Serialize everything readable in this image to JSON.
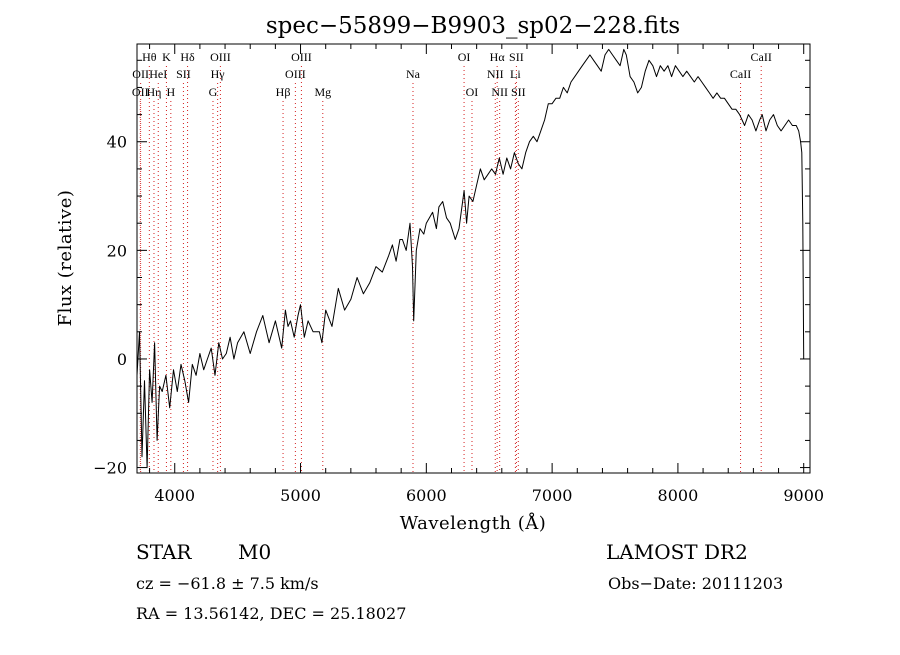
{
  "chart_data": {
    "type": "line",
    "title": "spec−55899−B9903_sp02−228.fits",
    "xlabel": "Wavelength (Å)",
    "ylabel": "Flux (relative)",
    "xlim": [
      3700,
      9050
    ],
    "ylim": [
      -21,
      58
    ],
    "xticks": [
      4000,
      5000,
      6000,
      7000,
      8000,
      9000
    ],
    "yticks": [
      -20,
      0,
      20,
      40
    ],
    "x_minor_step": 200,
    "y_minor_step": 5,
    "series": [
      {
        "color": "#000000",
        "x": [
          3700,
          3720,
          3740,
          3760,
          3780,
          3800,
          3820,
          3840,
          3860,
          3880,
          3900,
          3930,
          3960,
          3990,
          4020,
          4050,
          4080,
          4110,
          4140,
          4170,
          4200,
          4230,
          4260,
          4290,
          4320,
          4350,
          4380,
          4410,
          4440,
          4470,
          4500,
          4550,
          4600,
          4650,
          4700,
          4750,
          4800,
          4850,
          4880,
          4900,
          4920,
          4950,
          4980,
          5000,
          5030,
          5060,
          5100,
          5150,
          5170,
          5200,
          5250,
          5300,
          5350,
          5400,
          5450,
          5500,
          5550,
          5600,
          5650,
          5700,
          5730,
          5760,
          5790,
          5810,
          5840,
          5870,
          5890,
          5900,
          5920,
          5950,
          5980,
          6000,
          6050,
          6080,
          6100,
          6130,
          6160,
          6190,
          6230,
          6260,
          6300,
          6320,
          6340,
          6370,
          6400,
          6430,
          6460,
          6490,
          6520,
          6550,
          6580,
          6610,
          6640,
          6670,
          6700,
          6730,
          6760,
          6790,
          6820,
          6850,
          6880,
          6910,
          6940,
          6970,
          7000,
          7030,
          7060,
          7090,
          7120,
          7150,
          7180,
          7210,
          7240,
          7270,
          7300,
          7330,
          7360,
          7390,
          7420,
          7450,
          7480,
          7510,
          7540,
          7570,
          7590,
          7620,
          7650,
          7680,
          7710,
          7740,
          7770,
          7800,
          7830,
          7860,
          7890,
          7920,
          7950,
          7980,
          8010,
          8040,
          8070,
          8100,
          8130,
          8160,
          8190,
          8220,
          8250,
          8280,
          8310,
          8340,
          8370,
          8400,
          8430,
          8460,
          8490,
          8510,
          8530,
          8560,
          8590,
          8620,
          8650,
          8670,
          8700,
          8730,
          8760,
          8790,
          8820,
          8850,
          8880,
          8910,
          8940,
          8960,
          8975,
          8985,
          8993,
          9000
        ],
        "y": [
          -3,
          5,
          -18,
          -4,
          -20,
          -2,
          -8,
          3,
          -15,
          -5,
          -6,
          -3,
          -9,
          -2,
          -6,
          -1,
          -4,
          -8,
          -1,
          -3,
          1,
          -2,
          0,
          2,
          -3,
          3,
          0,
          1,
          4,
          0,
          3,
          5,
          1,
          5,
          8,
          3,
          7,
          2,
          9,
          6,
          7,
          4,
          8,
          10,
          4,
          7,
          5,
          5,
          3,
          9,
          6,
          13,
          9,
          11,
          15,
          12,
          14,
          17,
          16,
          19,
          21,
          18,
          22,
          22,
          20,
          25,
          17,
          7,
          20,
          24,
          23,
          25,
          27,
          24,
          28,
          29,
          26,
          25,
          22,
          24,
          31,
          25,
          30,
          29,
          32,
          35,
          33,
          34,
          35,
          34,
          37,
          34,
          37,
          35,
          38,
          36,
          35,
          38,
          40,
          41,
          40,
          42,
          44,
          47,
          47,
          48,
          48,
          50,
          49,
          51,
          52,
          53,
          54,
          55,
          56,
          55,
          54,
          53,
          56,
          57,
          56,
          55,
          54,
          57,
          56,
          52,
          51,
          49,
          50,
          53,
          55,
          54,
          52,
          54,
          53,
          54,
          52,
          54,
          53,
          52,
          53,
          52,
          51,
          52,
          51,
          50,
          49,
          48,
          49,
          48,
          48,
          47,
          46,
          46,
          45,
          44,
          43,
          45,
          44,
          42,
          44,
          45,
          42,
          44,
          45,
          43,
          42,
          43,
          44,
          43,
          43,
          42,
          40,
          38,
          25,
          0
        ]
      }
    ],
    "lines": [
      {
        "wave": 3726,
        "label": "OII",
        "row": 2
      },
      {
        "wave": 3729,
        "label": "OII",
        "row": 1
      },
      {
        "wave": 3798,
        "label": "Hθ",
        "row": 0
      },
      {
        "wave": 3835,
        "label": "Hη",
        "row": 2
      },
      {
        "wave": 3869,
        "label": "HeI",
        "row": 1
      },
      {
        "wave": 3934,
        "label": "K",
        "row": 0
      },
      {
        "wave": 3969,
        "label": "H",
        "row": 2
      },
      {
        "wave": 4069,
        "label": "SII",
        "row": 1
      },
      {
        "wave": 4102,
        "label": "Hδ",
        "row": 0
      },
      {
        "wave": 4304,
        "label": "G",
        "row": 2
      },
      {
        "wave": 4341,
        "label": "Hγ",
        "row": 1
      },
      {
        "wave": 4363,
        "label": "OIII",
        "row": 0
      },
      {
        "wave": 4861,
        "label": "Hβ",
        "row": 2
      },
      {
        "wave": 4959,
        "label": "OIII",
        "row": 1
      },
      {
        "wave": 5007,
        "label": "OIII",
        "row": 0
      },
      {
        "wave": 5177,
        "label": "Mg",
        "row": 2
      },
      {
        "wave": 5894,
        "label": "Na",
        "row": 1
      },
      {
        "wave": 6300,
        "label": "OI",
        "row": 0
      },
      {
        "wave": 6363,
        "label": "OI",
        "row": 2
      },
      {
        "wave": 6548,
        "label": "NII",
        "row": 1
      },
      {
        "wave": 6563,
        "label": "Hα",
        "row": 0
      },
      {
        "wave": 6583,
        "label": "NII",
        "row": 2
      },
      {
        "wave": 6708,
        "label": "Li",
        "row": 1
      },
      {
        "wave": 6716,
        "label": "SII",
        "row": 0
      },
      {
        "wave": 6731,
        "label": "SII",
        "row": 2
      },
      {
        "wave": 8498,
        "label": "CaII",
        "row": 1
      },
      {
        "wave": 8662,
        "label": "CaII",
        "row": 0
      }
    ]
  },
  "info": {
    "class_label": "STAR",
    "subclass": "M0",
    "survey": "LAMOST DR2",
    "cz": "cz = −61.8 ± 7.5 km/s",
    "obs_date": "Obs−Date: 20111203",
    "radec": "RA =  13.56142, DEC =  25.18027"
  }
}
